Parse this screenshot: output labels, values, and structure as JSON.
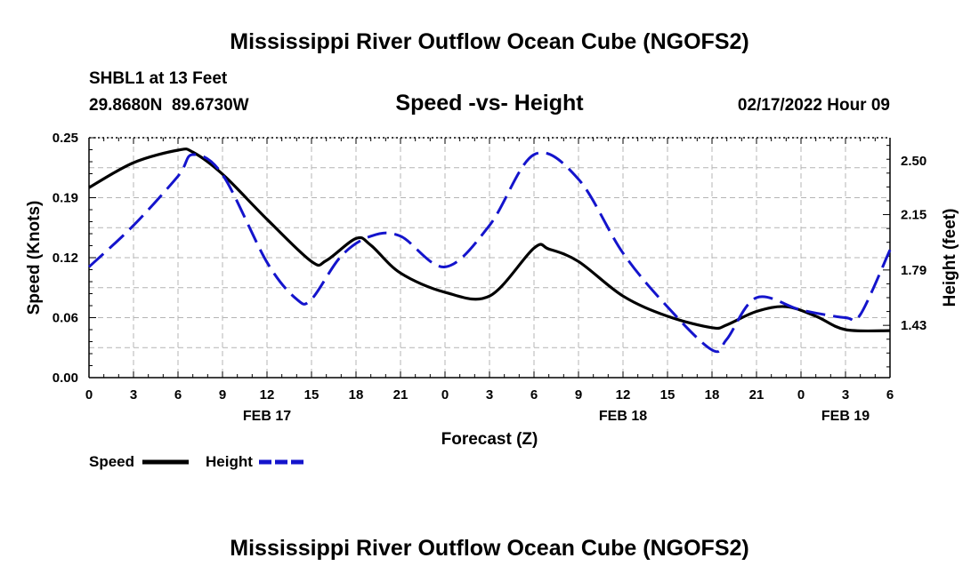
{
  "page_title": "Mississippi River Outflow Ocean Cube (NGOFS2)",
  "footer_title": "Mississippi River Outflow Ocean Cube (NGOFS2)",
  "station": {
    "name": "SHBL1 at 13 Feet",
    "coords": "29.8680N  89.6730W",
    "datetime": "02/17/2022 Hour 09"
  },
  "chart_data": {
    "type": "line",
    "title": "Speed -vs- Height",
    "xlabel": "Forecast (Z)",
    "ylabel": "Speed (Knots)",
    "y2label": "Height (feet)",
    "x_range": [
      0,
      54
    ],
    "ylim": [
      0,
      0.25
    ],
    "y2lim": [
      1.09,
      2.65
    ],
    "x_ticks": [
      {
        "x": 0,
        "label": "0"
      },
      {
        "x": 3,
        "label": "3"
      },
      {
        "x": 6,
        "label": "6"
      },
      {
        "x": 9,
        "label": "9"
      },
      {
        "x": 12,
        "label": "12"
      },
      {
        "x": 15,
        "label": "15"
      },
      {
        "x": 18,
        "label": "18"
      },
      {
        "x": 21,
        "label": "21"
      },
      {
        "x": 24,
        "label": "0"
      },
      {
        "x": 27,
        "label": "3"
      },
      {
        "x": 30,
        "label": "6"
      },
      {
        "x": 33,
        "label": "9"
      },
      {
        "x": 36,
        "label": "12"
      },
      {
        "x": 39,
        "label": "15"
      },
      {
        "x": 42,
        "label": "18"
      },
      {
        "x": 45,
        "label": "21"
      },
      {
        "x": 48,
        "label": "0"
      },
      {
        "x": 51,
        "label": "3"
      },
      {
        "x": 54,
        "label": "6"
      }
    ],
    "date_labels": [
      {
        "x": 12,
        "label": "FEB 17"
      },
      {
        "x": 36,
        "label": "FEB 18"
      },
      {
        "x": 51,
        "label": "FEB 19"
      }
    ],
    "y_ticks": [
      {
        "v": 0.0,
        "label": "0.00"
      },
      {
        "v": 0.0625,
        "label": "0.06"
      },
      {
        "v": 0.125,
        "label": "0.12"
      },
      {
        "v": 0.1875,
        "label": "0.19"
      },
      {
        "v": 0.25,
        "label": "0.25"
      }
    ],
    "y2_ticks": [
      {
        "v": 1.43,
        "label": "1.43"
      },
      {
        "v": 1.79,
        "label": "1.79"
      },
      {
        "v": 2.15,
        "label": "2.15"
      },
      {
        "v": 2.5,
        "label": "2.50"
      }
    ],
    "series": [
      {
        "name": "Speed",
        "axis": "left",
        "color": "#000000",
        "dash": "solid",
        "x": [
          0,
          3,
          6,
          7,
          9,
          12,
          15,
          16,
          18,
          19,
          21,
          24,
          27,
          30,
          31,
          33,
          36,
          39,
          42,
          43,
          45,
          47,
          49,
          51,
          54
        ],
        "values": [
          0.198,
          0.224,
          0.237,
          0.235,
          0.212,
          0.165,
          0.121,
          0.122,
          0.145,
          0.138,
          0.109,
          0.089,
          0.085,
          0.135,
          0.134,
          0.121,
          0.085,
          0.064,
          0.052,
          0.055,
          0.069,
          0.074,
          0.064,
          0.05,
          0.049
        ]
      },
      {
        "name": "Height",
        "axis": "right",
        "color": "#1414cc",
        "dash": "dashed",
        "x": [
          0,
          3,
          6,
          7,
          9,
          12,
          14,
          15,
          17,
          19,
          21,
          24,
          27,
          30,
          33,
          36,
          39,
          42,
          43,
          45,
          48,
          51,
          52,
          54
        ],
        "values": [
          1.81,
          2.08,
          2.4,
          2.54,
          2.41,
          1.84,
          1.6,
          1.6,
          1.88,
          2.01,
          2.01,
          1.81,
          2.08,
          2.54,
          2.38,
          1.9,
          1.55,
          1.27,
          1.34,
          1.61,
          1.53,
          1.48,
          1.5,
          1.92
        ]
      }
    ]
  },
  "legend": {
    "speed_label": "Speed",
    "height_label": "Height",
    "speed_color": "#000000",
    "height_color": "#1414cc"
  }
}
